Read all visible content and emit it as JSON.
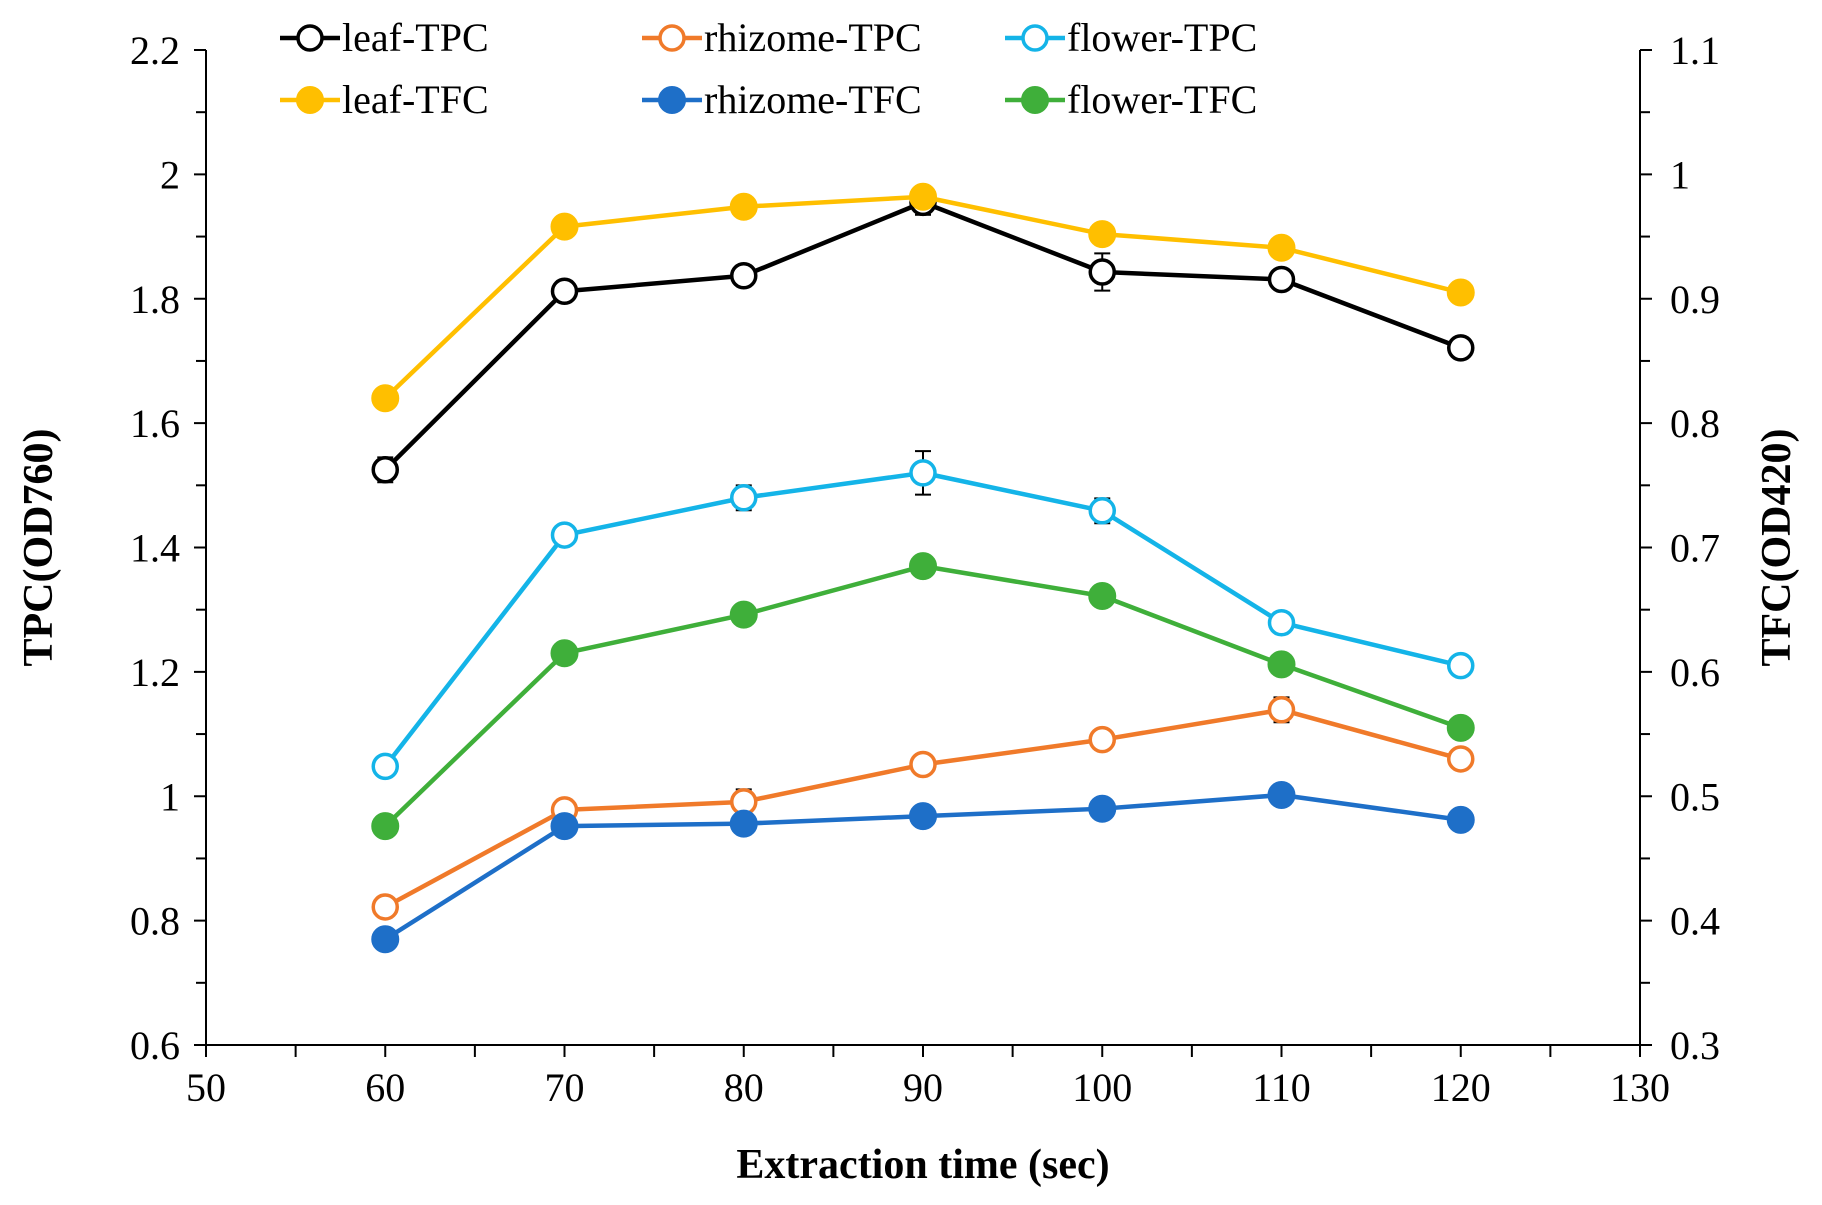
{
  "chart_data": {
    "type": "line",
    "title": "",
    "xlabel": "Extraction time (sec)",
    "ylabel": "TPC(OD760)",
    "y2label": "TFC(OD420)",
    "xlim": [
      50,
      130
    ],
    "ylim": [
      0.6,
      2.2
    ],
    "y2lim": [
      0.3,
      1.1
    ],
    "x_ticks": [
      "50",
      "60",
      "70",
      "80",
      "90",
      "100",
      "110",
      "120",
      "130"
    ],
    "y_ticks": [
      "0.6",
      "0.8",
      "1",
      "1.2",
      "1.4",
      "1.6",
      "1.8",
      "2",
      "2.2"
    ],
    "y2_ticks": [
      "0.3",
      "0.4",
      "0.5",
      "0.6",
      "0.7",
      "0.8",
      "0.9",
      "1",
      "1.1"
    ],
    "x": [
      60,
      70,
      80,
      90,
      100,
      110,
      120
    ],
    "series": [
      {
        "name": "leaf-TPC",
        "axis": "left",
        "marker": "open",
        "color": "#000000",
        "values": [
          1.525,
          1.812,
          1.837,
          1.955,
          1.843,
          1.831,
          1.721
        ],
        "errors": [
          0.02,
          0.0,
          0.015,
          0.02,
          0.03,
          0.015,
          0.0
        ]
      },
      {
        "name": "rhizome-TPC",
        "axis": "left",
        "marker": "open",
        "color": "#F07A2A",
        "values": [
          0.822,
          0.978,
          0.991,
          1.051,
          1.091,
          1.139,
          1.06
        ],
        "errors": [
          0.0,
          0.0,
          0.02,
          0.0,
          0.0,
          0.02,
          0.0
        ]
      },
      {
        "name": "flower-TPC",
        "axis": "left",
        "marker": "open",
        "color": "#14B4E8",
        "values": [
          1.048,
          1.42,
          1.48,
          1.52,
          1.459,
          1.279,
          1.21
        ],
        "errors": [
          0.0,
          0.0,
          0.02,
          0.035,
          0.02,
          0.0,
          0.0
        ]
      },
      {
        "name": "leaf-TFC",
        "axis": "right",
        "marker": "filled",
        "color": "#FFBF00",
        "values": [
          0.82,
          0.958,
          0.974,
          0.982,
          0.952,
          0.941,
          0.905
        ],
        "errors": [
          0.0,
          0.0,
          0.0,
          0.0,
          0.0,
          0.0,
          0.0
        ]
      },
      {
        "name": "rhizome-TFC",
        "axis": "right",
        "marker": "filled",
        "color": "#1E6FC8",
        "values": [
          0.385,
          0.476,
          0.478,
          0.484,
          0.49,
          0.501,
          0.481
        ],
        "errors": [
          0.0,
          0.0,
          0.0,
          0.0,
          0.0,
          0.0,
          0.0
        ]
      },
      {
        "name": "flower-TFC",
        "axis": "right",
        "marker": "filled",
        "color": "#3FAF3A",
        "values": [
          0.476,
          0.615,
          0.646,
          0.685,
          0.661,
          0.606,
          0.555
        ],
        "errors": [
          0.0,
          0.0,
          0.0,
          0.0,
          0.0,
          0.0,
          0.0
        ]
      }
    ],
    "legend": {
      "placement": "top-left",
      "columns": 3,
      "order": [
        "leaf-TPC",
        "rhizome-TPC",
        "flower-TPC",
        "leaf-TFC",
        "rhizome-TFC",
        "flower-TFC"
      ]
    }
  }
}
